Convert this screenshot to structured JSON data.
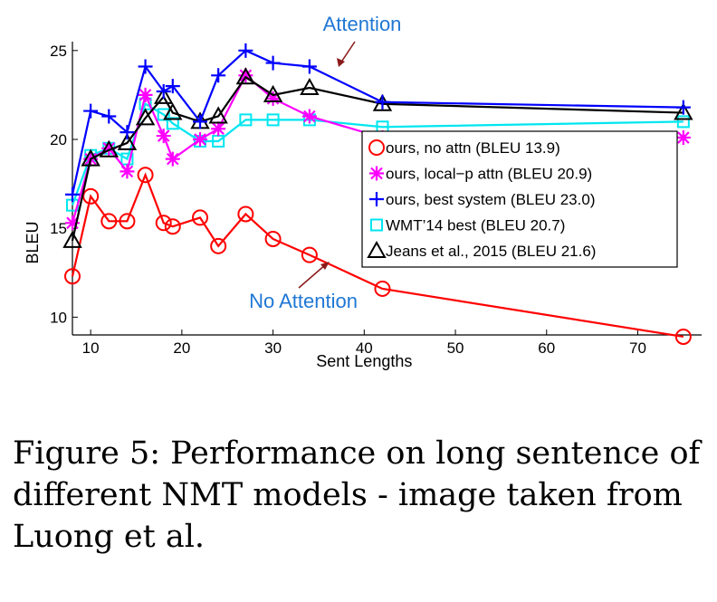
{
  "caption": "Figure 5: Performance on long sentence of different NMT models - image taken from Luong et al.",
  "chart_data": {
    "type": "line",
    "xlabel": "Sent Lengths",
    "ylabel": "BLEU",
    "xlim": [
      8,
      77
    ],
    "ylim": [
      9,
      25.5
    ],
    "xticks": [
      10,
      20,
      30,
      40,
      50,
      60,
      70
    ],
    "yticks": [
      10,
      15,
      20,
      25
    ],
    "grid": false,
    "legend_position": "right",
    "annotations": [
      {
        "text": "Attention",
        "color": "#1f77d4"
      },
      {
        "text": "No Attention",
        "color": "#1f77d4"
      }
    ],
    "series": [
      {
        "name": "ours, no attn (BLEU 13.9)",
        "color": "#ff0000",
        "marker": "circle",
        "x": [
          8,
          10,
          12,
          14,
          16,
          18,
          19,
          22,
          24,
          27,
          30,
          34,
          42,
          75
        ],
        "y": [
          12.3,
          16.8,
          15.4,
          15.4,
          18.0,
          15.3,
          15.1,
          15.6,
          14.0,
          15.8,
          14.4,
          13.5,
          11.6,
          8.9
        ]
      },
      {
        "name": "ours, local−p attn (BLEU 20.9)",
        "color": "#ff00ff",
        "marker": "star",
        "x": [
          8,
          10,
          12,
          14,
          16,
          18,
          19,
          22,
          24,
          27,
          30,
          34,
          42,
          75
        ],
        "y": [
          15.3,
          18.9,
          19.5,
          18.2,
          22.5,
          20.2,
          18.9,
          20.0,
          20.6,
          23.6,
          22.3,
          21.3,
          20.1,
          20.1
        ]
      },
      {
        "name": "ours, best system (BLEU 23.0)",
        "color": "#0000ff",
        "marker": "plus",
        "x": [
          8,
          10,
          12,
          14,
          16,
          18,
          19,
          22,
          24,
          27,
          30,
          34,
          42,
          75
        ],
        "y": [
          16.9,
          21.6,
          21.3,
          20.4,
          24.1,
          22.7,
          23.0,
          21.0,
          23.6,
          25.0,
          24.3,
          24.1,
          22.1,
          21.8
        ]
      },
      {
        "name": "WMT’14 best (BLEU 20.7)",
        "color": "#00e6f0",
        "marker": "square",
        "x": [
          8,
          10,
          12,
          14,
          16,
          18,
          19,
          22,
          24,
          27,
          30,
          34,
          42,
          75
        ],
        "y": [
          16.3,
          19.1,
          19.5,
          18.9,
          22.0,
          21.4,
          20.9,
          19.9,
          19.9,
          21.1,
          21.1,
          21.1,
          20.7,
          21.0
        ]
      },
      {
        "name": "Jeans et al., 2015 (BLEU 21.6)",
        "color": "#000000",
        "marker": "triangle",
        "x": [
          8,
          10,
          12,
          14,
          16,
          18,
          19,
          22,
          24,
          27,
          30,
          34,
          42,
          75
        ],
        "y": [
          14.3,
          18.9,
          19.4,
          19.8,
          21.2,
          22.4,
          21.5,
          21.0,
          21.3,
          23.5,
          22.5,
          22.9,
          22.0,
          21.5
        ]
      }
    ]
  }
}
